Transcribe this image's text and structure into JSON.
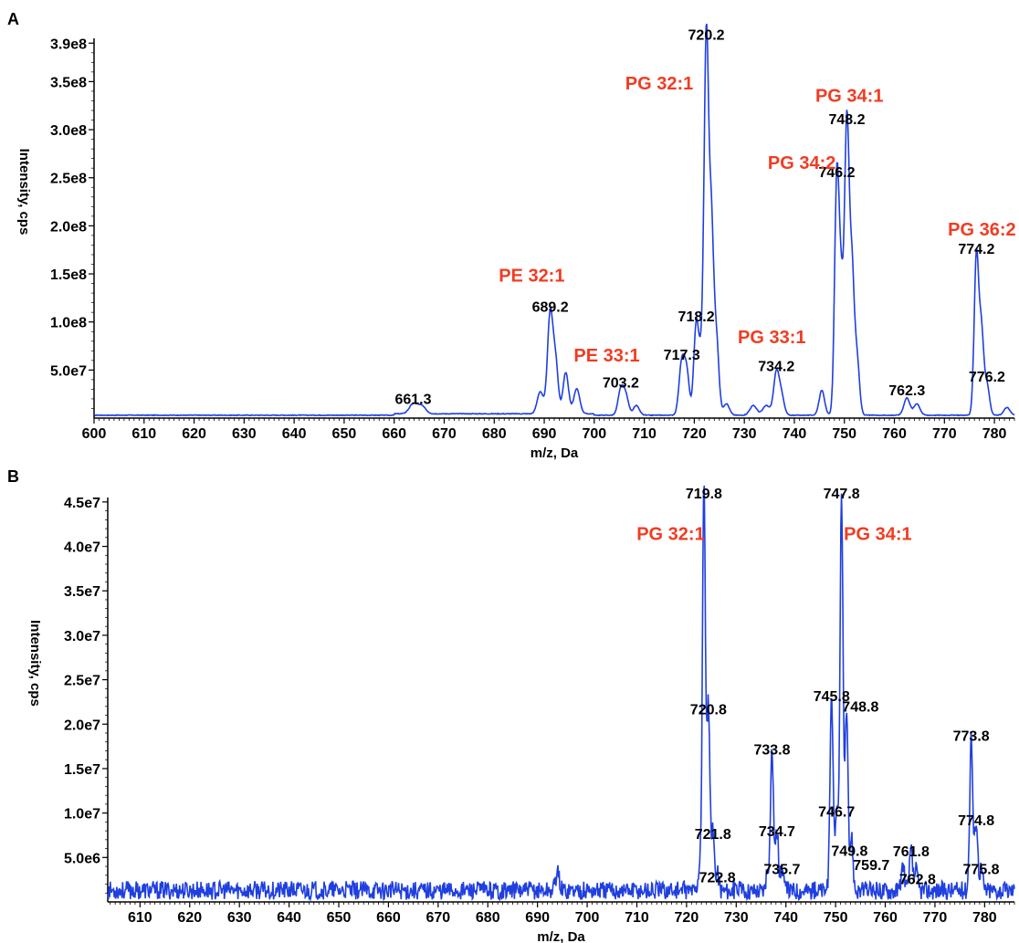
{
  "colors": {
    "trace": "#1f3fe0",
    "lipid_label": "#f03c22",
    "axis": "#000000"
  },
  "chart_data": [
    {
      "type": "line",
      "panel": "A",
      "xlabel": "m/z, Da",
      "ylabel": "Intensity, cps",
      "xlim": [
        600,
        784
      ],
      "ylim": [
        0,
        395000000.0
      ],
      "x_ticks": [
        600,
        610,
        620,
        630,
        640,
        650,
        660,
        670,
        680,
        690,
        700,
        710,
        720,
        730,
        740,
        750,
        760,
        770,
        780
      ],
      "y_ticks": [
        {
          "value": 50000000.0,
          "label": "5.0e7"
        },
        {
          "value": 100000000.0,
          "label": "1.0e8"
        },
        {
          "value": 150000000.0,
          "label": "1.5e8"
        },
        {
          "value": 200000000.0,
          "label": "2.0e8"
        },
        {
          "value": 250000000.0,
          "label": "2.5e8"
        },
        {
          "value": 300000000.0,
          "label": "3.0e8"
        },
        {
          "value": 350000000.0,
          "label": "3.5e8"
        },
        {
          "value": 390000000.0,
          "label": "3.9e8"
        }
      ],
      "baseline": 3000000.0,
      "noise": 1200000.0,
      "peaks": [
        {
          "x": 663.8,
          "y": 10000000.0,
          "w": 0.8
        },
        {
          "x": 665.5,
          "y": 8000000.0,
          "w": 0.8
        },
        {
          "x": 689.2,
          "y": 23000000.0,
          "w": 0.6
        },
        {
          "x": 691.2,
          "y": 105000000.0,
          "w": 0.55
        },
        {
          "x": 692.3,
          "y": 50000000.0,
          "w": 0.5
        },
        {
          "x": 694.3,
          "y": 43000000.0,
          "w": 0.55
        },
        {
          "x": 696.5,
          "y": 26000000.0,
          "w": 0.6
        },
        {
          "x": 705.3,
          "y": 26000000.0,
          "w": 0.55
        },
        {
          "x": 706.3,
          "y": 20000000.0,
          "w": 0.55
        },
        {
          "x": 708.4,
          "y": 10000000.0,
          "w": 0.6
        },
        {
          "x": 717.5,
          "y": 55000000.0,
          "w": 0.55
        },
        {
          "x": 718.5,
          "y": 42000000.0,
          "w": 0.5
        },
        {
          "x": 720.4,
          "y": 95000000.0,
          "w": 0.5
        },
        {
          "x": 721.4,
          "y": 50000000.0,
          "w": 0.45
        },
        {
          "x": 722.4,
          "y": 388000000.0,
          "w": 0.45
        },
        {
          "x": 723.4,
          "y": 188000000.0,
          "w": 0.45
        },
        {
          "x": 724.4,
          "y": 80000000.0,
          "w": 0.5
        },
        {
          "x": 726.4,
          "y": 12000000.0,
          "w": 0.6
        },
        {
          "x": 731.8,
          "y": 10000000.0,
          "w": 0.7
        },
        {
          "x": 734.4,
          "y": 10000000.0,
          "w": 0.7
        },
        {
          "x": 736.4,
          "y": 43000000.0,
          "w": 0.55
        },
        {
          "x": 737.4,
          "y": 20000000.0,
          "w": 0.55
        },
        {
          "x": 745.5,
          "y": 26000000.0,
          "w": 0.55
        },
        {
          "x": 748.5,
          "y": 245000000.0,
          "w": 0.45
        },
        {
          "x": 749.4,
          "y": 120000000.0,
          "w": 0.45
        },
        {
          "x": 750.5,
          "y": 300000000.0,
          "w": 0.45
        },
        {
          "x": 751.5,
          "y": 145000000.0,
          "w": 0.45
        },
        {
          "x": 752.5,
          "y": 60000000.0,
          "w": 0.5
        },
        {
          "x": 762.5,
          "y": 18000000.0,
          "w": 0.6
        },
        {
          "x": 764.5,
          "y": 12000000.0,
          "w": 0.6
        },
        {
          "x": 776.4,
          "y": 165000000.0,
          "w": 0.45
        },
        {
          "x": 777.4,
          "y": 85000000.0,
          "w": 0.45
        },
        {
          "x": 778.5,
          "y": 32000000.0,
          "w": 0.5
        },
        {
          "x": 782.5,
          "y": 8000000.0,
          "w": 0.6
        }
      ],
      "peak_labels": [
        {
          "text": "661.3",
          "x": 663.8,
          "y": 11000000.0
        },
        {
          "text": "689.2",
          "x": 691.2,
          "y": 107000000.0
        },
        {
          "text": "703.2",
          "x": 705.3,
          "y": 28000000.0
        },
        {
          "text": "717.3",
          "x": 717.5,
          "y": 57000000.0
        },
        {
          "text": "718.2",
          "x": 720.4,
          "y": 97000000.0
        },
        {
          "text": "720.2",
          "x": 722.4,
          "y": 390000000.0
        },
        {
          "text": "734.2",
          "x": 736.4,
          "y": 45000000.0
        },
        {
          "text": "746.2",
          "x": 748.5,
          "y": 247000000.0
        },
        {
          "text": "748.2",
          "x": 750.5,
          "y": 302000000.0
        },
        {
          "text": "762.3",
          "x": 762.5,
          "y": 20000000.0
        },
        {
          "text": "774.2",
          "x": 776.4,
          "y": 167000000.0
        },
        {
          "text": "776.2",
          "x": 778.5,
          "y": 34000000.0
        }
      ],
      "lipid_labels": [
        {
          "text": "PE 32:1",
          "x": 687.5,
          "y": 142000000.0
        },
        {
          "text": "PE 33:1",
          "x": 702.5,
          "y": 59000000.0
        },
        {
          "text": "PG 32:1",
          "x": 713.0,
          "y": 342000000.0
        },
        {
          "text": "PG 33:1",
          "x": 735.5,
          "y": 78000000.0
        },
        {
          "text": "PG 34:2",
          "x": 741.5,
          "y": 259000000.0
        },
        {
          "text": "PG 34:1",
          "x": 751.0,
          "y": 329000000.0
        },
        {
          "text": "PG 36:2",
          "x": 777.5,
          "y": 190000000.0
        }
      ]
    },
    {
      "type": "line",
      "panel": "B",
      "xlabel": "m/z, Da",
      "ylabel": "Intensity, cps",
      "xlim": [
        603.5,
        786
      ],
      "ylim": [
        0,
        45500000.0
      ],
      "x_ticks": [
        610,
        620,
        630,
        640,
        650,
        660,
        670,
        680,
        690,
        700,
        710,
        720,
        730,
        740,
        750,
        760,
        770,
        780
      ],
      "y_ticks": [
        {
          "value": 5000000.0,
          "label": "5.0e6"
        },
        {
          "value": 10000000.0,
          "label": "1.0e7"
        },
        {
          "value": 15000000.0,
          "label": "1.5e7"
        },
        {
          "value": 20000000.0,
          "label": "2.0e7"
        },
        {
          "value": 25000000.0,
          "label": "2.5e7"
        },
        {
          "value": 30000000.0,
          "label": "3.0e7"
        },
        {
          "value": 35000000.0,
          "label": "3.5e7"
        },
        {
          "value": 40000000.0,
          "label": "4.0e7"
        },
        {
          "value": 45000000.0,
          "label": "4.5e7"
        }
      ],
      "baseline": 1300000.0,
      "noise": 1300000.0,
      "peaks": [
        {
          "x": 694.0,
          "y": 2000000.0,
          "w": 0.4
        },
        {
          "x": 722.6,
          "y": 2500000.0,
          "w": 0.3
        },
        {
          "x": 723.5,
          "y": 45000000.0,
          "w": 0.3
        },
        {
          "x": 724.4,
          "y": 20500000.0,
          "w": 0.3
        },
        {
          "x": 725.3,
          "y": 6500000.0,
          "w": 0.3
        },
        {
          "x": 726.2,
          "y": 2000000.0,
          "w": 0.3
        },
        {
          "x": 736.3,
          "y": 2500000.0,
          "w": 0.3
        },
        {
          "x": 737.2,
          "y": 16000000.0,
          "w": 0.3
        },
        {
          "x": 738.2,
          "y": 6800000.0,
          "w": 0.3
        },
        {
          "x": 739.2,
          "y": 2500000.0,
          "w": 0.3
        },
        {
          "x": 749.2,
          "y": 22000000.0,
          "w": 0.3
        },
        {
          "x": 750.2,
          "y": 9000000.0,
          "w": 0.3
        },
        {
          "x": 751.2,
          "y": 45000000.0,
          "w": 0.3
        },
        {
          "x": 752.2,
          "y": 20000000.0,
          "w": 0.3
        },
        {
          "x": 753.2,
          "y": 6000000.0,
          "w": 0.3
        },
        {
          "x": 763.6,
          "y": 3000000.0,
          "w": 0.3
        },
        {
          "x": 765.2,
          "y": 4500000.0,
          "w": 0.3
        },
        {
          "x": 766.2,
          "y": 2200000.0,
          "w": 0.3
        },
        {
          "x": 777.3,
          "y": 17500000.0,
          "w": 0.3
        },
        {
          "x": 778.3,
          "y": 8000000.0,
          "w": 0.3
        },
        {
          "x": 779.3,
          "y": 2500000.0,
          "w": 0.3
        }
      ],
      "peak_labels": [
        {
          "text": "719.8",
          "x": 723.5,
          "y": 45000000.0
        },
        {
          "text": "720.8",
          "x": 724.4,
          "y": 20700000.0
        },
        {
          "text": "721.8",
          "x": 725.3,
          "y": 6700000.0
        },
        {
          "text": "722.8",
          "x": 726.2,
          "y": 1800000.0
        },
        {
          "text": "733.8",
          "x": 737.2,
          "y": 16200000.0
        },
        {
          "text": "734.7",
          "x": 738.2,
          "y": 7000000.0
        },
        {
          "text": "735.7",
          "x": 739.2,
          "y": 2700000.0
        },
        {
          "text": "745.8",
          "x": 749.2,
          "y": 22200000.0
        },
        {
          "text": "746.7",
          "x": 750.2,
          "y": 9200000.0
        },
        {
          "text": "747.8",
          "x": 751.2,
          "y": 45000000.0
        },
        {
          "text": "748.8",
          "x": 755.0,
          "y": 21000000.0
        },
        {
          "text": "749.8",
          "x": 752.8,
          "y": 4800000.0
        },
        {
          "text": "759.7",
          "x": 757.2,
          "y": 3200000.0
        },
        {
          "text": "761.8",
          "x": 765.2,
          "y": 4700000.0
        },
        {
          "text": "762.8",
          "x": 766.5,
          "y": 1600000.0
        },
        {
          "text": "773.8",
          "x": 777.3,
          "y": 17700000.0
        },
        {
          "text": "774.8",
          "x": 778.3,
          "y": 8200000.0
        },
        {
          "text": "775.8",
          "x": 779.3,
          "y": 2700000.0
        }
      ],
      "lipid_labels": [
        {
          "text": "PG 32:1",
          "x": 716.8,
          "y": 40700000.0
        },
        {
          "text": "PG 34:1",
          "x": 758.5,
          "y": 40700000.0
        }
      ]
    }
  ]
}
